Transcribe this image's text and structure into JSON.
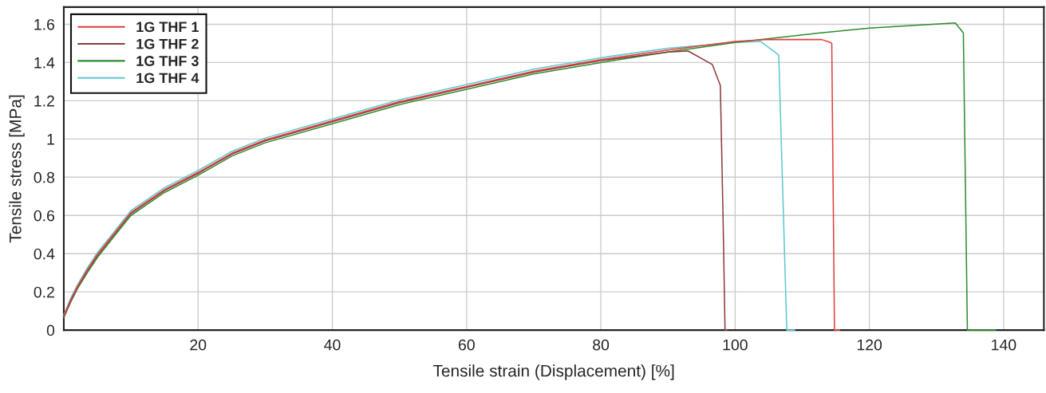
{
  "chart_data": {
    "type": "line",
    "xlabel": "Tensile strain (Displacement) [%]",
    "ylabel": "Tensile stress [MPa]",
    "xlim": [
      0,
      146
    ],
    "ylim": [
      0,
      1.69
    ],
    "xticks": [
      20,
      40,
      60,
      80,
      100,
      120,
      140
    ],
    "yticks": [
      0,
      0.2,
      0.4,
      0.6,
      0.8,
      1,
      1.2,
      1.4,
      1.6
    ],
    "grid": true,
    "legend": "top left",
    "marker": "none",
    "line_style": "solid",
    "series": [
      {
        "name": "1G THF 1",
        "color": "#e23c3c",
        "x": [
          0,
          1,
          2,
          3.5,
          5,
          7.5,
          10,
          15,
          20,
          25,
          30,
          40,
          50,
          60,
          70,
          80,
          90,
          100,
          104.5,
          112.9,
          114.2,
          114.4,
          114.8,
          115.6
        ],
        "values": [
          0.075,
          0.155,
          0.225,
          0.315,
          0.395,
          0.505,
          0.615,
          0.735,
          0.825,
          0.925,
          0.995,
          1.095,
          1.195,
          1.275,
          1.355,
          1.415,
          1.465,
          1.51,
          1.52,
          1.52,
          1.505,
          1.5,
          0,
          0
        ]
      },
      {
        "name": "1G THF 2",
        "color": "#8b3a3a",
        "x": [
          0,
          1,
          2,
          3.5,
          5,
          7.5,
          10,
          15,
          20,
          25,
          30,
          40,
          50,
          60,
          70,
          80,
          90,
          93,
          96.6,
          97.8,
          98.2,
          98.5,
          98.8
        ],
        "values": [
          0.07,
          0.15,
          0.22,
          0.31,
          0.39,
          0.5,
          0.61,
          0.73,
          0.82,
          0.92,
          0.99,
          1.09,
          1.19,
          1.27,
          1.35,
          1.41,
          1.455,
          1.46,
          1.39,
          1.28,
          0.6,
          0,
          0
        ]
      },
      {
        "name": "1G THF 3",
        "color": "#2e8b2e",
        "x": [
          0,
          1,
          2,
          3.5,
          5,
          7.5,
          10,
          15,
          20,
          25,
          30,
          40,
          50,
          60,
          70,
          80,
          90,
          100,
          110,
          120,
          132.8,
          134,
          134.6,
          138.8
        ],
        "values": [
          0.065,
          0.145,
          0.215,
          0.3,
          0.38,
          0.49,
          0.6,
          0.72,
          0.81,
          0.91,
          0.98,
          1.08,
          1.18,
          1.26,
          1.34,
          1.4,
          1.455,
          1.505,
          1.545,
          1.58,
          1.607,
          1.555,
          0,
          0
        ]
      },
      {
        "name": "1G THF 4",
        "color": "#5bc8d0",
        "x": [
          0,
          1,
          2,
          3.5,
          5,
          7.5,
          10,
          15,
          20,
          25,
          30,
          40,
          50,
          60,
          70,
          80,
          90,
          100,
          103.8,
          106.5,
          107.7,
          108.9
        ],
        "values": [
          0.08,
          0.165,
          0.235,
          0.325,
          0.405,
          0.515,
          0.625,
          0.745,
          0.835,
          0.935,
          1.005,
          1.105,
          1.205,
          1.285,
          1.365,
          1.425,
          1.475,
          1.505,
          1.51,
          1.44,
          0,
          0
        ]
      }
    ]
  }
}
